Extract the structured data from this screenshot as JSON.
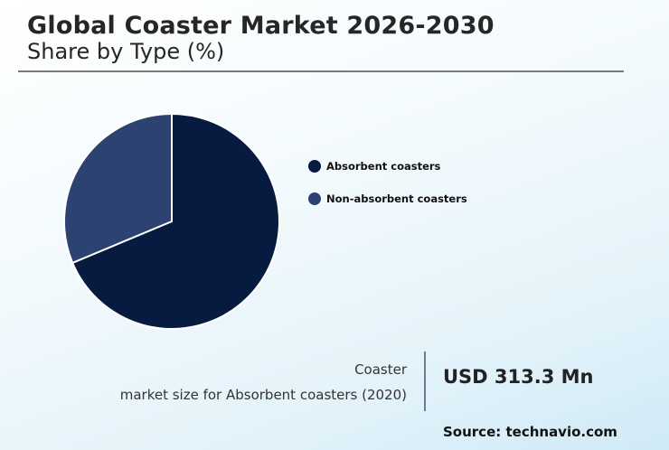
{
  "header": {
    "title": "Global Coaster Market 2026-2030",
    "subtitle": "Share by Type (%)"
  },
  "legend": {
    "items": [
      {
        "label": "Absorbent coasters",
        "color": "#071b41"
      },
      {
        "label": "Non-absorbent coasters",
        "color": "#2c4270"
      }
    ]
  },
  "stat": {
    "label_line1": "Coaster",
    "label_line2": "market size for Absorbent coasters (2020)",
    "value": "USD 313.3 Mn"
  },
  "footer": {
    "source": "Source: technavio.com"
  },
  "chart_data": {
    "type": "pie",
    "title": "Global Coaster Market 2026-2030",
    "subtitle": "Share by Type (%)",
    "categories": [
      "Absorbent coasters",
      "Non-absorbent coasters"
    ],
    "values": [
      68.7,
      31.3
    ],
    "colors": [
      "#071b41",
      "#2c4270"
    ],
    "legend_position": "right",
    "annotation": "Coaster market size for Absorbent coasters (2020): USD 313.3 Mn"
  }
}
